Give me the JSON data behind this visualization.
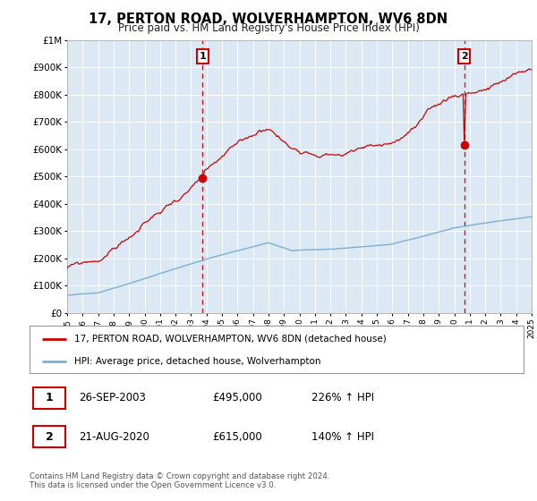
{
  "title": "17, PERTON ROAD, WOLVERHAMPTON, WV6 8DN",
  "subtitle": "Price paid vs. HM Land Registry's House Price Index (HPI)",
  "background_color": "#ffffff",
  "plot_bg_color": "#dce9f5",
  "grid_color": "#ffffff",
  "red_color": "#cc0000",
  "blue_color": "#7aafd4",
  "sale1_year": 2003.74,
  "sale1_price": 495000,
  "sale2_year": 2020.64,
  "sale2_price": 615000,
  "legend_label_red": "17, PERTON ROAD, WOLVERHAMPTON, WV6 8DN (detached house)",
  "legend_label_blue": "HPI: Average price, detached house, Wolverhampton",
  "annotation1_label": "1",
  "annotation1_date": "26-SEP-2003",
  "annotation1_price": "£495,000",
  "annotation1_hpi": "226% ↑ HPI",
  "annotation2_label": "2",
  "annotation2_date": "21-AUG-2020",
  "annotation2_price": "£615,000",
  "annotation2_hpi": "140% ↑ HPI",
  "footer": "Contains HM Land Registry data © Crown copyright and database right 2024.\nThis data is licensed under the Open Government Licence v3.0.",
  "xmin": 1995,
  "xmax": 2025,
  "ymin": 0,
  "ymax": 1000000
}
